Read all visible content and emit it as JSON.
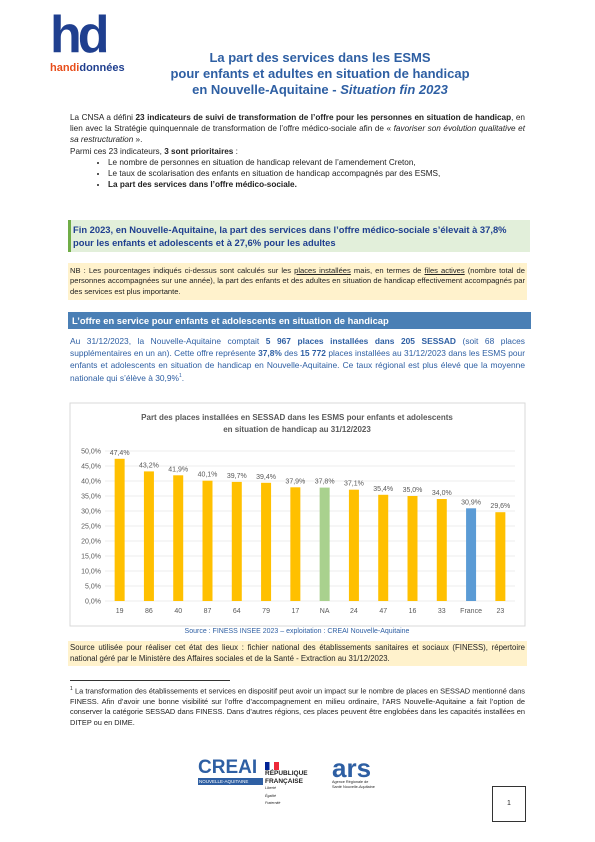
{
  "header": {
    "logo": {
      "mark": "hd",
      "word1": "handi",
      "word2": "données"
    },
    "title": [
      "La part des services dans les ESMS",
      "pour enfants et adultes en situation de handicap",
      "en Nouvelle-Aquitaine - ",
      "Situation fin 2023"
    ]
  },
  "intro": {
    "paragraph": [
      "La CNSA a défini ",
      "23 indicateurs de suivi de transformation de l’offre pour les personnes en situation de handicap",
      ", en lien avec la Stratégie quinquennale de transformation de l’offre médico-sociale afin de « ",
      "favoriser son évolution qualitative et sa restructuration",
      " »."
    ],
    "priority": [
      "Parmi ces 23 indicateurs, ",
      "3 sont prioritaires",
      " :"
    ],
    "bullets": [
      "Le nombre de personnes en situation de handicap relevant de l’amendement Creton,",
      "Le taux de scolarisation des enfants en situation de handicap accompagnés par des ESMS,",
      "La part des services dans l’offre médico-sociale."
    ]
  },
  "highlight": "Fin 2023, en Nouvelle-Aquitaine, la part des services dans l’offre médico-sociale s’élevait à 37,8% pour les enfants et adolescents et à 27,6% pour les adultes",
  "nb": [
    "NB : Les pourcentages indiqués ci-dessus sont calculés sur les ",
    "places installées",
    " mais, en termes de ",
    "files actives",
    " (nombre total de personnes accompagnées sur une année), la part des enfants et des adultes en situation de handicap effectivement accompagnés par des services est plus importante."
  ],
  "section": {
    "heading": "L’offre en service pour enfants et adolescents en situation de handicap",
    "paragraph": [
      "Au 31/12/2023, la Nouvelle-Aquitaine comptait ",
      "5 967 places installées dans 205 SESSAD",
      " (soit 68 places supplémentaires en un an). Cette offre représente ",
      "37,8%",
      " des ",
      "15 772",
      " places installées au 31/12/2023 dans les ESMS pour enfants et adolescents en situation de handicap en Nouvelle-Aquitaine. Ce taux régional est plus élevé que la moyenne nationale qui s’élève à ",
      "30,9%",
      "1",
      "."
    ]
  },
  "chart_data": {
    "type": "bar",
    "title": [
      "Part des places installées en SESSAD dans les ESMS pour enfants et adolescents",
      "en situation de handicap au 31/12/2023"
    ],
    "categories": [
      "19",
      "86",
      "40",
      "87",
      "64",
      "79",
      "17",
      "NA",
      "24",
      "47",
      "16",
      "33",
      "France",
      "23"
    ],
    "values": [
      47.4,
      43.2,
      41.9,
      40.1,
      39.7,
      39.4,
      37.9,
      37.8,
      37.1,
      35.4,
      35.0,
      34.0,
      30.9,
      29.6
    ],
    "value_labels": [
      "47,4%",
      "43,2%",
      "41,9%",
      "40,1%",
      "39,7%",
      "39,4%",
      "37,9%",
      "37,8%",
      "37,1%",
      "35,4%",
      "35,0%",
      "34,0%",
      "30,9%",
      "29,6%"
    ],
    "colors": [
      "#ffc000",
      "#ffc000",
      "#ffc000",
      "#ffc000",
      "#ffc000",
      "#ffc000",
      "#ffc000",
      "#a9d18e",
      "#ffc000",
      "#ffc000",
      "#ffc000",
      "#ffc000",
      "#5b9bd5",
      "#ffc000"
    ],
    "ylim": [
      0,
      50
    ],
    "yticks": [
      {
        "value": 0,
        "label": "0,0%"
      },
      {
        "value": 5,
        "label": "5,0%"
      },
      {
        "value": 10,
        "label": "10,0%"
      },
      {
        "value": 15,
        "label": "15,0%"
      },
      {
        "value": 20,
        "label": "20,0%"
      },
      {
        "value": 25,
        "label": "25,0%"
      },
      {
        "value": 30,
        "label": "30,0%"
      },
      {
        "value": 35,
        "label": "35,0%"
      },
      {
        "value": 40,
        "label": "40,0%"
      },
      {
        "value": 45,
        "label": "45,0%"
      },
      {
        "value": 50,
        "label": "50,0%"
      }
    ],
    "grid": true,
    "source": "Source : FINESS INSEE 2023  – exploitation : CREAI Nouvelle-Aquitaine"
  },
  "source_note": "Source utilisée pour réaliser cet état des lieux : fichier national des établissements sanitaires et sociaux (FINESS), répertoire national géré par le Ministère des Affaires sociales et de la Santé - Extraction au 31/12/2023.",
  "footnote": {
    "number": "1",
    "text": "La transformation des établissements et services en dispositif peut avoir un impact sur le nombre de places en SESSAD mentionné dans FINESS. Afin d’avoir une bonne visibilité sur l’offre d’accompagnement en milieu ordinaire, l’ARS Nouvelle-Aquitaine a fait l’option de conserver la catégorie SESSAD dans FINESS. Dans d’autres régions, ces places peuvent être englobées dans les capacités installées en DITEP ou en DIME."
  },
  "footer": {
    "creai": "CREAI",
    "creai_sub": "NOUVELLE-AQUITAINE",
    "rf": [
      "RÉPUBLIQUE",
      "FRANÇAISE"
    ],
    "rf_motto": "Liberté Égalité Fraternité",
    "ars": "ars",
    "ars_sub": "Agence Régionale de Santé Nouvelle-Aquitaine",
    "page": "1"
  }
}
